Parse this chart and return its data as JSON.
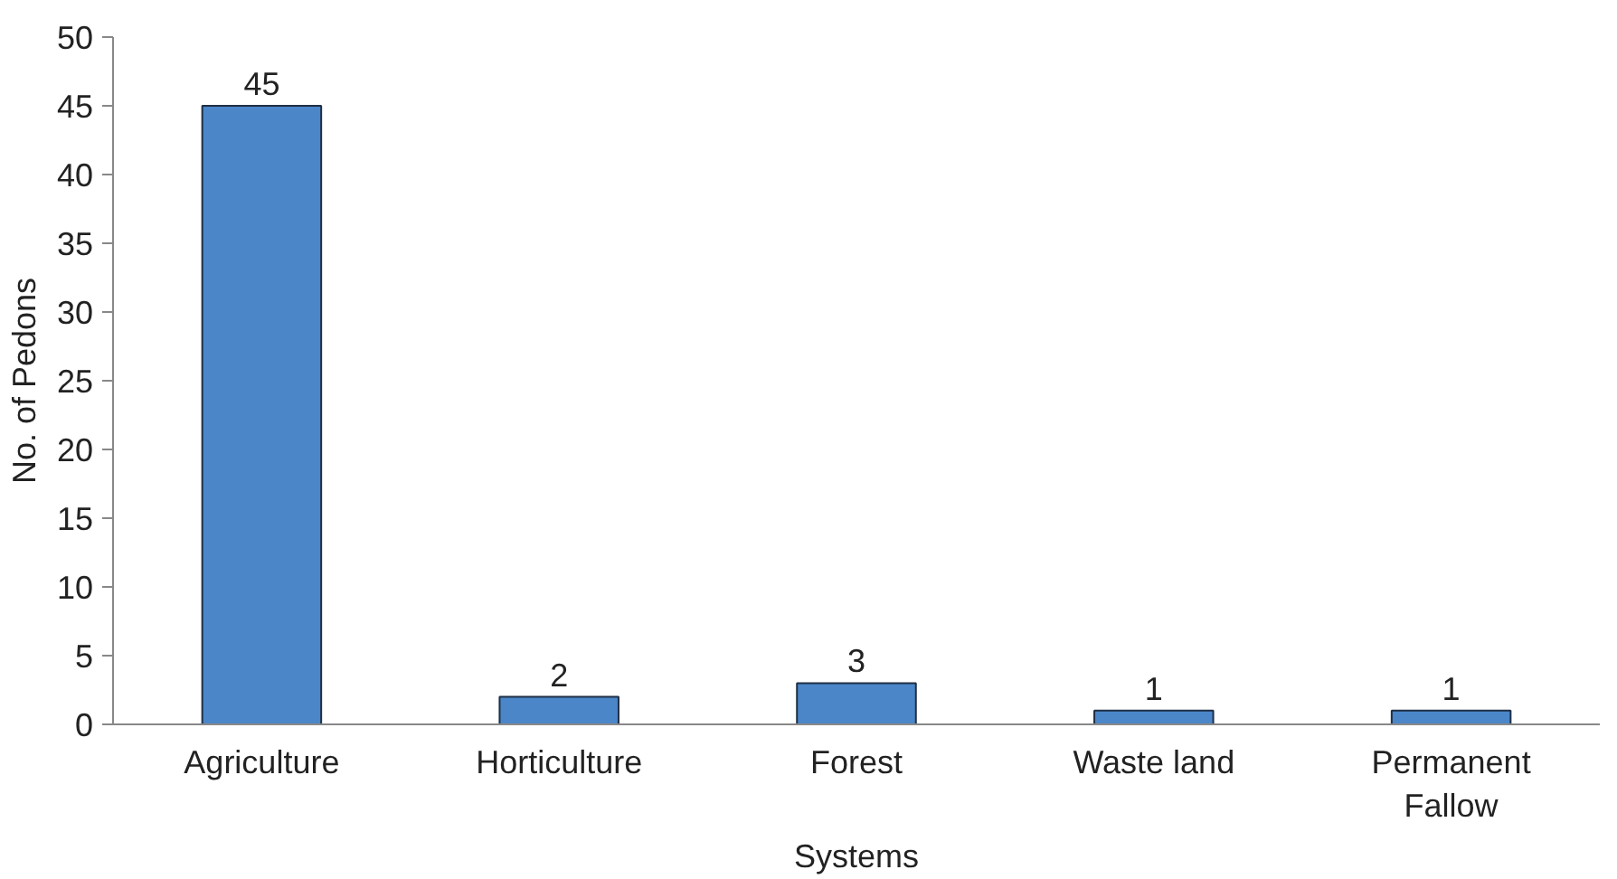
{
  "chart_data": {
    "type": "bar",
    "xlabel": "Systems",
    "ylabel": "No. of Pedons",
    "categories": [
      "Agriculture",
      "Horticulture",
      "Forest",
      "Waste land",
      "Permanent\nFallow"
    ],
    "values": [
      45,
      2,
      3,
      1,
      1
    ],
    "color": "#4a86c8",
    "ylim": [
      0,
      50
    ],
    "yticks": [
      0,
      5,
      10,
      15,
      20,
      25,
      30,
      35,
      40,
      45,
      50
    ],
    "data_labels": true
  }
}
